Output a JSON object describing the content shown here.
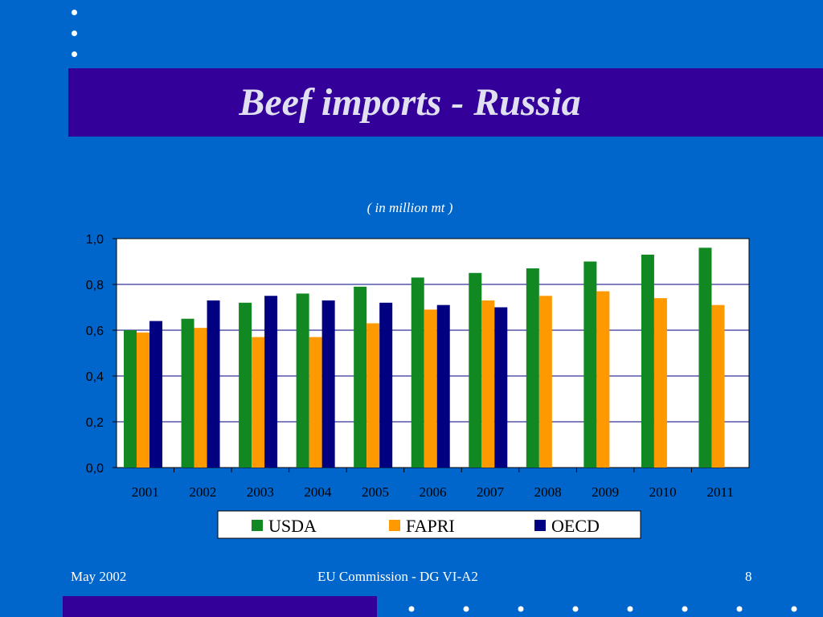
{
  "slide": {
    "title": "Beef imports - Russia",
    "footer_left": "May 2002",
    "footer_center": "EU Commission - DG VI-A2",
    "page_number": "8"
  },
  "colors": {
    "background": "#0066cc",
    "title_band": "#330099",
    "usda": "#118822",
    "fapri": "#ff9900",
    "oecd": "#000080"
  },
  "chart_data": {
    "type": "bar",
    "subtitle": "( in million mt )",
    "categories": [
      "2001",
      "2002",
      "2003",
      "2004",
      "2005",
      "2006",
      "2007",
      "2008",
      "2009",
      "2010",
      "2011"
    ],
    "series": [
      {
        "name": "USDA",
        "values": [
          0.6,
          0.65,
          0.72,
          0.76,
          0.79,
          0.83,
          0.85,
          0.87,
          0.9,
          0.93,
          0.96
        ]
      },
      {
        "name": "FAPRI",
        "values": [
          0.59,
          0.61,
          0.57,
          0.57,
          0.63,
          0.69,
          0.73,
          0.75,
          0.77,
          0.74,
          0.71
        ]
      },
      {
        "name": "OECD",
        "values": [
          0.64,
          0.73,
          0.75,
          0.73,
          0.72,
          0.71,
          0.7,
          null,
          null,
          null,
          null
        ]
      }
    ],
    "y_ticks": [
      "0,0",
      "0,2",
      "0,4",
      "0,6",
      "0,8",
      "1,0"
    ],
    "ylim": [
      0,
      1.0
    ],
    "grid": true,
    "legend_position": "bottom"
  }
}
